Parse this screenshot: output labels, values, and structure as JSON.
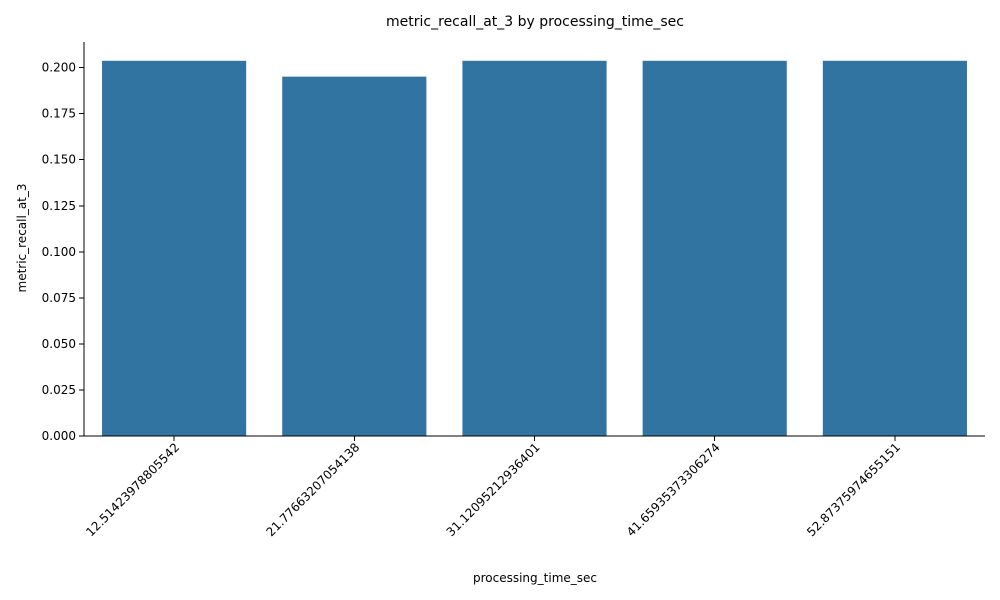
{
  "chart_data": {
    "type": "bar",
    "title": "metric_recall_at_3 by processing_time_sec",
    "xlabel": "processing_time_sec",
    "ylabel": "metric_recall_at_3",
    "categories": [
      "12.51423978805542",
      "21.77663207054138",
      "31.12095212936401",
      "41.65935373306274",
      "52.87375974655151"
    ],
    "values": [
      0.2037,
      0.1951,
      0.2037,
      0.2037,
      0.2037
    ],
    "ylim": [
      0,
      0.2139
    ],
    "yticks": [
      0.0,
      0.025,
      0.05,
      0.075,
      0.1,
      0.125,
      0.15,
      0.175,
      0.2
    ],
    "ytick_labels": [
      "0.000",
      "0.025",
      "0.050",
      "0.075",
      "0.100",
      "0.125",
      "0.150",
      "0.175",
      "0.200"
    ],
    "xtick_rotation_deg": 45,
    "grid": false,
    "legend": "none",
    "colors": {
      "bar": "#3274a1",
      "axis": "#000000",
      "background": "#ffffff"
    }
  }
}
